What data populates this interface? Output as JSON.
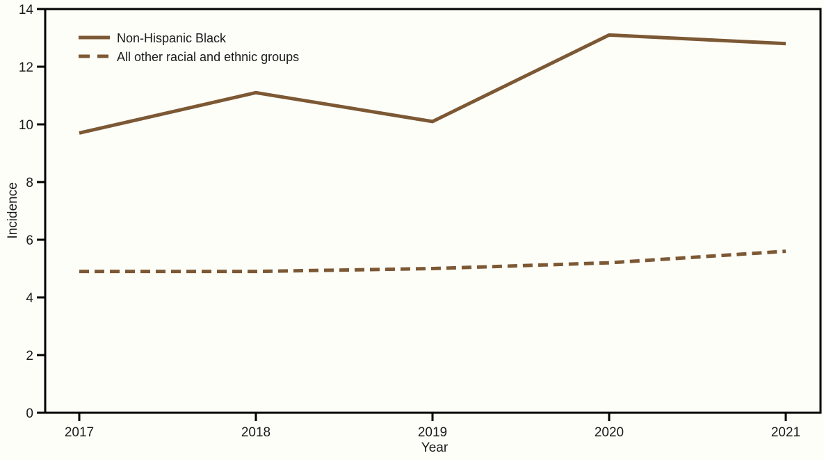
{
  "chart_data": {
    "type": "line",
    "title": "",
    "xlabel": "Year",
    "ylabel": "Incidence",
    "categories": [
      "2017",
      "2018",
      "2019",
      "2020",
      "2021"
    ],
    "series": [
      {
        "name": "Non-Hispanic Black",
        "style": "solid",
        "values": [
          9.7,
          11.1,
          10.1,
          13.1,
          12.8
        ]
      },
      {
        "name": "All other racial and ethnic groups",
        "style": "dashed",
        "values": [
          4.9,
          4.9,
          5.0,
          5.2,
          5.6
        ]
      }
    ],
    "ylim": [
      0,
      14
    ],
    "ytick_step": 2,
    "yticks": [
      0,
      2,
      4,
      6,
      8,
      10,
      12,
      14
    ],
    "grid": false,
    "legend_position": "top-left",
    "line_color": "#7C5834",
    "axis_color": "#000000",
    "background": "#FEFEF8"
  }
}
